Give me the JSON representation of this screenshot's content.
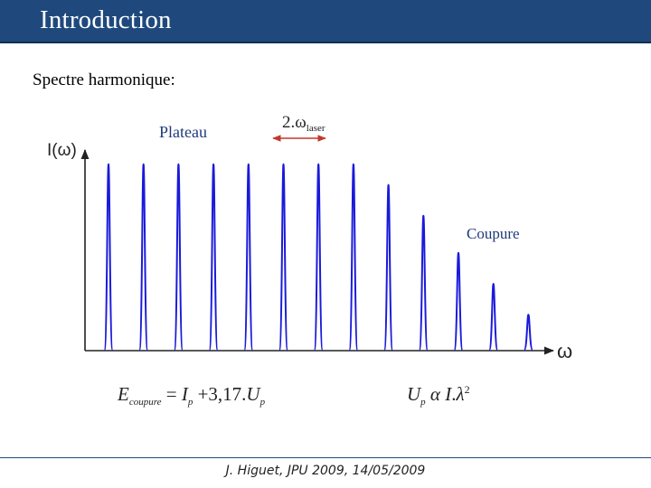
{
  "slide": {
    "title": "Introduction",
    "subtitle": "Spectre harmonique:",
    "footer": "J. Higuet, JPU 2009, 14/05/2009"
  },
  "figure": {
    "y_axis_label": "I(ω)",
    "x_axis_label": "ω",
    "plateau_label": "Plateau",
    "cutoff_label": "Coupure",
    "spacing_label_main": "2.ω",
    "spacing_label_sub": "laser",
    "peak_color": "#1a1adb",
    "arrow_color": "#c0392b",
    "peak_heights": [
      0.9,
      0.9,
      0.9,
      0.9,
      0.9,
      0.9,
      0.9,
      0.9,
      0.8,
      0.65,
      0.47,
      0.32,
      0.17
    ]
  },
  "equations": {
    "cutoff": {
      "E": "E",
      "E_sub": "coupure",
      "eq": "=",
      "I": "I",
      "I_sub": "p",
      "rest": "+3,17.",
      "U": "U",
      "U_sub": "p"
    },
    "ponderomotive": {
      "U": "U",
      "U_sub": "p",
      "alpha": "α",
      "I": "I",
      "dot": ".",
      "lambda": "λ",
      "exp": "2"
    }
  }
}
